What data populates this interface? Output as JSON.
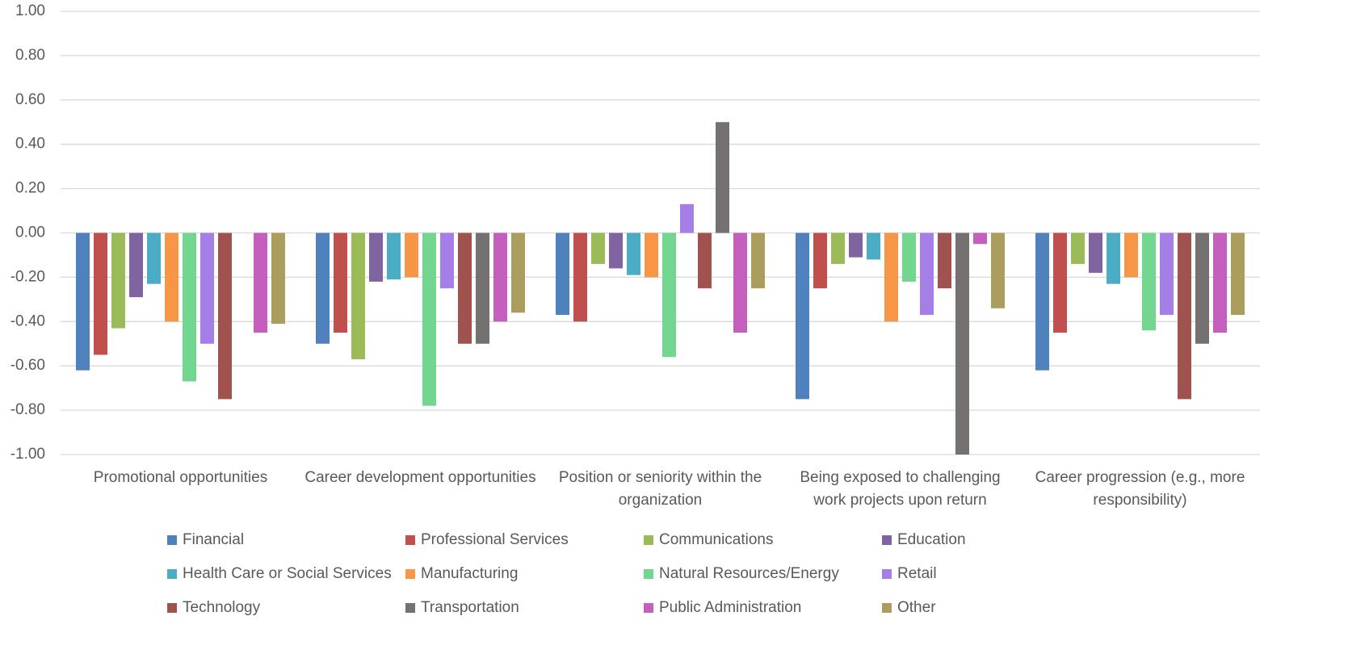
{
  "chart_data": {
    "type": "bar",
    "categories": [
      "Promotional opportunities",
      "Career development opportunities",
      "Position or seniority within the organization",
      "Being exposed to challenging work projects upon return",
      "Career progression (e.g., more responsibility)"
    ],
    "series": [
      {
        "name": "Financial",
        "color": "#4f81bd",
        "values": [
          -0.62,
          -0.5,
          -0.37,
          -0.75,
          -0.62
        ]
      },
      {
        "name": "Professional Services",
        "color": "#c0504d",
        "values": [
          -0.55,
          -0.45,
          -0.4,
          -0.25,
          -0.45
        ]
      },
      {
        "name": "Communications",
        "color": "#9bbb59",
        "values": [
          -0.43,
          -0.57,
          -0.14,
          -0.14,
          -0.14
        ]
      },
      {
        "name": "Education",
        "color": "#8064a2",
        "values": [
          -0.29,
          -0.22,
          -0.16,
          -0.11,
          -0.18
        ]
      },
      {
        "name": "Health Care or Social Services",
        "color": "#4bacc6",
        "values": [
          -0.23,
          -0.21,
          -0.19,
          -0.12,
          -0.23
        ]
      },
      {
        "name": "Manufacturing",
        "color": "#f79646",
        "values": [
          -0.4,
          -0.2,
          -0.2,
          -0.4,
          -0.2
        ]
      },
      {
        "name": "Natural Resources/Energy",
        "color": "#72d68f",
        "values": [
          -0.67,
          -0.78,
          -0.56,
          -0.22,
          -0.44
        ]
      },
      {
        "name": "Retail",
        "color": "#a67ee8",
        "values": [
          -0.5,
          -0.25,
          0.13,
          -0.37,
          -0.37
        ]
      },
      {
        "name": "Technology",
        "color": "#a0524f",
        "values": [
          -0.75,
          -0.5,
          -0.25,
          -0.25,
          -0.75
        ]
      },
      {
        "name": "Transportation",
        "color": "#767171",
        "values": [
          0,
          -0.5,
          0.5,
          -1.0,
          -0.5
        ]
      },
      {
        "name": "Public Administration",
        "color": "#c45fbd",
        "values": [
          -0.45,
          -0.4,
          -0.45,
          -0.05,
          -0.45
        ]
      },
      {
        "name": "Other",
        "color": "#ab9d5e",
        "values": [
          -0.41,
          -0.36,
          -0.25,
          -0.34,
          -0.37
        ]
      }
    ],
    "ylim": [
      -1,
      1
    ],
    "yticks": [
      {
        "value": 1,
        "label": "1.00"
      },
      {
        "value": 0.8,
        "label": "0.80"
      },
      {
        "value": 0.6,
        "label": "0.60"
      },
      {
        "value": 0.4,
        "label": "0.40"
      },
      {
        "value": 0.2,
        "label": "0.20"
      },
      {
        "value": 0,
        "label": "0.00"
      },
      {
        "value": -0.2,
        "label": "-0.20"
      },
      {
        "value": -0.4,
        "label": "-0.40"
      },
      {
        "value": -0.6,
        "label": "-0.60"
      },
      {
        "value": -0.8,
        "label": "-0.80"
      },
      {
        "value": -1,
        "label": "-1.00"
      }
    ],
    "grid": true,
    "legend": "bottom"
  }
}
